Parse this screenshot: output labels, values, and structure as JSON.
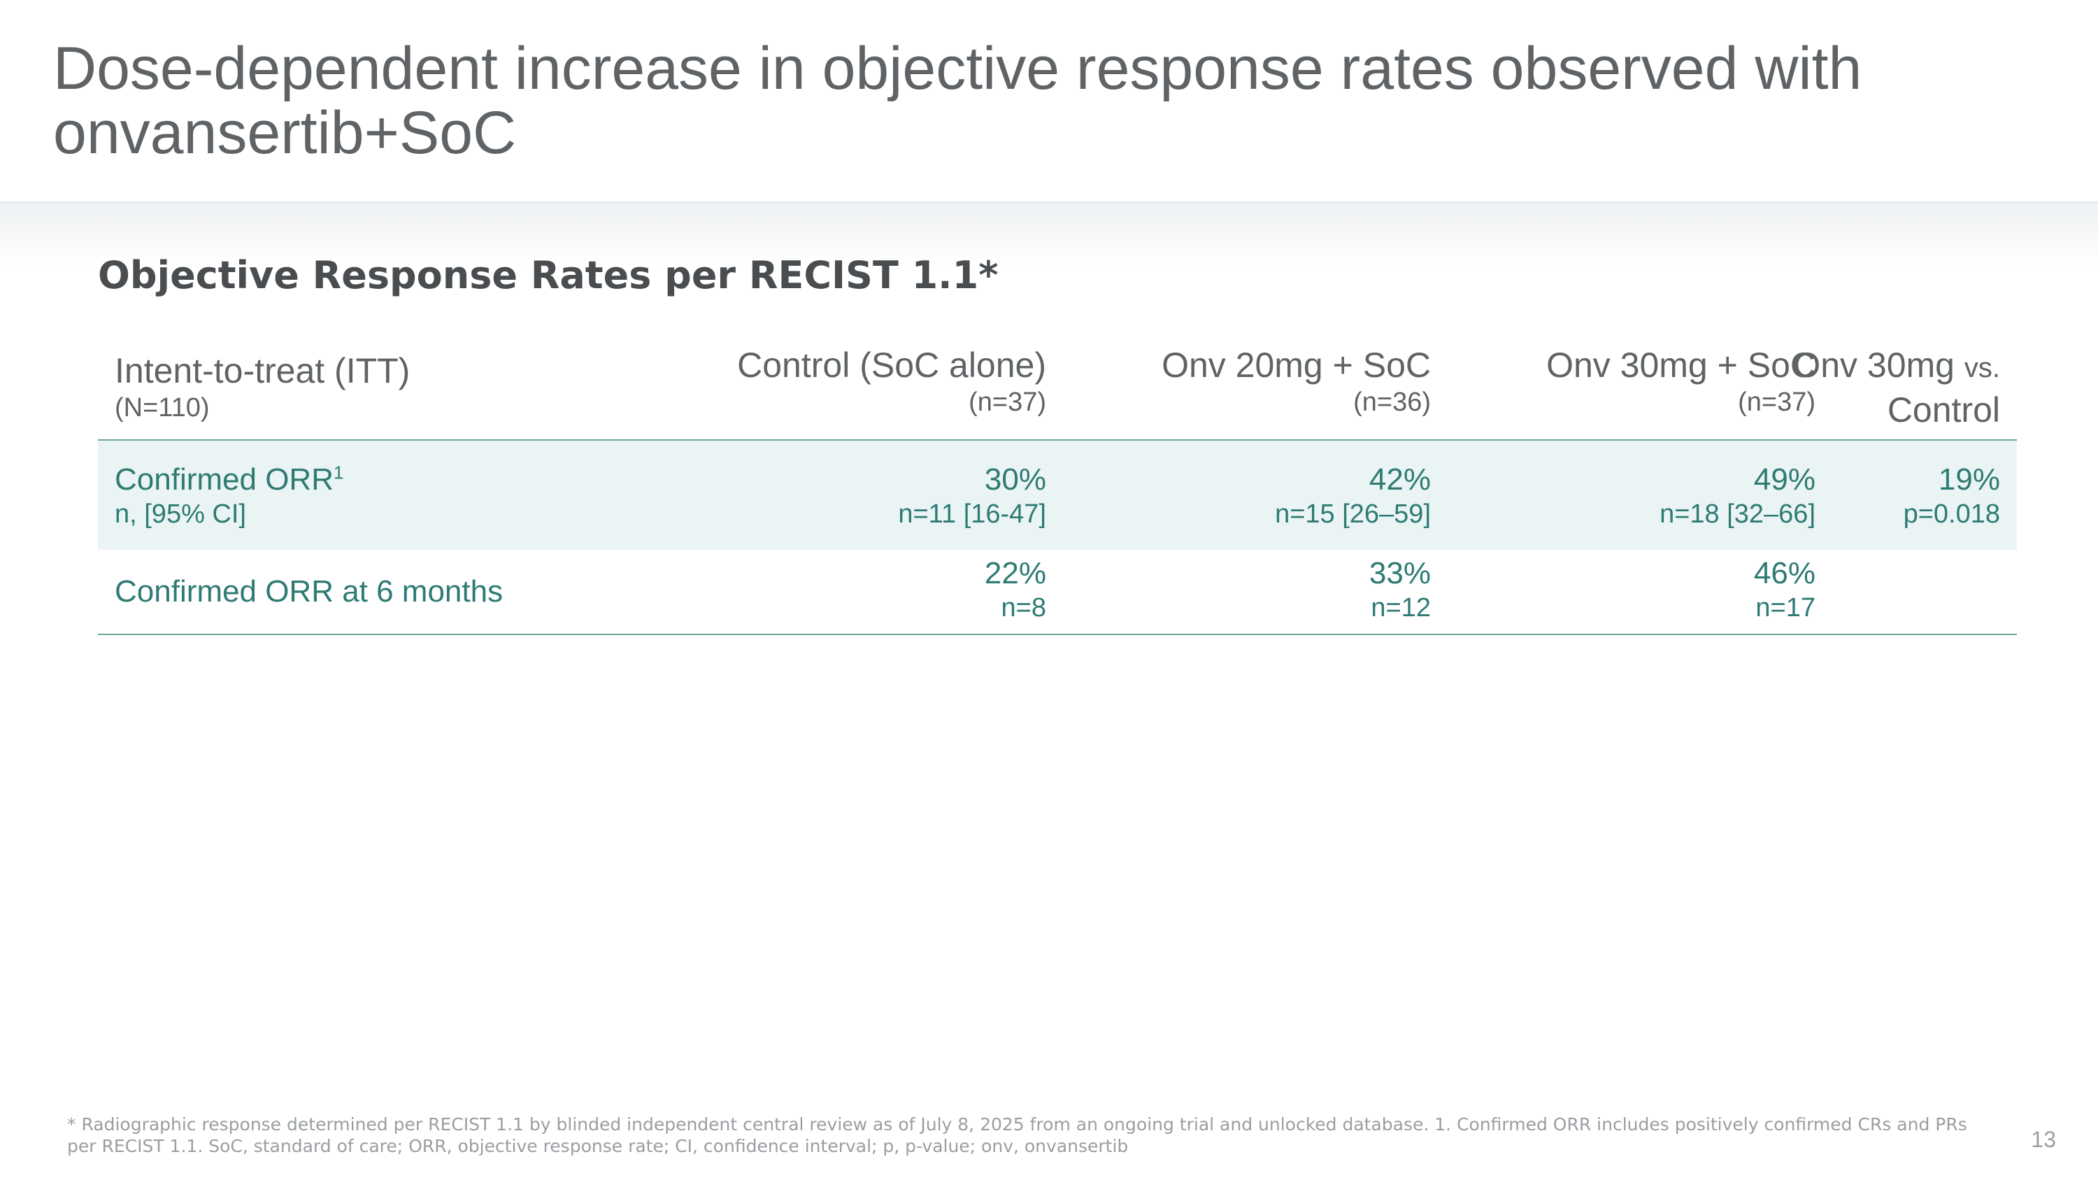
{
  "slide": {
    "title": "Dose-dependent increase in objective response rates observed with onvansertib+SoC",
    "page_number": "13"
  },
  "section": {
    "title": "Objective Response Rates per RECIST 1.1*"
  },
  "table": {
    "header": {
      "population_label": "Intent-to-treat (ITT)",
      "population_n": "(N=110)",
      "columns": [
        {
          "label": "Control (SoC alone)",
          "n": "(n=37)"
        },
        {
          "label": "Onv 20mg + SoC",
          "n": "(n=36)"
        },
        {
          "label": "Onv 30mg + SoC",
          "n": "(n=37)"
        }
      ],
      "comparison": {
        "label_a": "Onv 30mg",
        "label_vs": "vs.",
        "label_b": "Control"
      }
    },
    "rows": [
      {
        "label": "Confirmed ORR",
        "label_superscript": "1",
        "sublabel": "n, [95% CI]",
        "values": [
          {
            "pct": "30%",
            "detail": "n=11 [16-47]"
          },
          {
            "pct": "42%",
            "detail": "n=15 [26–59]"
          },
          {
            "pct": "49%",
            "detail": "n=18 [32–66]"
          }
        ],
        "comparison": {
          "pct": "19%",
          "detail": "p=0.018"
        }
      },
      {
        "label": "Confirmed ORR at 6 months",
        "values": [
          {
            "pct": "22%",
            "detail": "n=8"
          },
          {
            "pct": "33%",
            "detail": "n=12"
          },
          {
            "pct": "46%",
            "detail": "n=17"
          }
        ]
      }
    ]
  },
  "footnote": "* Radiographic response determined per RECIST 1.1 by blinded independent central review as of July 8, 2025 from an ongoing trial and unlocked database. 1. Confirmed ORR includes positively confirmed CRs and PRs per RECIST 1.1. SoC, standard of care; ORR, objective response rate; CI, confidence interval; p, p-value; onv, onvansertib",
  "colors": {
    "title_gray": "#5f6366",
    "teal_text": "#2e7b74",
    "row_highlight": "#ebf4f4",
    "rule_teal": "#6aa598"
  }
}
